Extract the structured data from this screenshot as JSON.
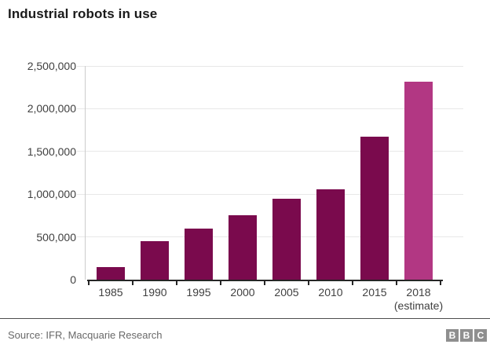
{
  "header": {
    "title": "Industrial robots in use"
  },
  "chart_data": {
    "type": "bar",
    "title": "Industrial robots in use",
    "categories": [
      "1985",
      "1990",
      "1995",
      "2000",
      "2005",
      "2010",
      "2015",
      "2018"
    ],
    "category_sublabels": [
      "",
      "",
      "",
      "",
      "",
      "",
      "",
      "(estimate)"
    ],
    "values": [
      150000,
      450000,
      600000,
      750000,
      950000,
      1060000,
      1670000,
      2320000
    ],
    "xlabel": "",
    "ylabel": "",
    "ylim": [
      0,
      2500000
    ],
    "yticks": [
      0,
      500000,
      1000000,
      1500000,
      2000000,
      2500000
    ],
    "ytick_labels": [
      "0",
      "500,000",
      "1,000,000",
      "1,500,000",
      "2,000,000",
      "2,500,000"
    ],
    "grid": "horizontal",
    "legend": "none",
    "colors": {
      "bar": "#7a0a4d",
      "highlight_bar": "#b23783",
      "gridline": "#e8e8e8",
      "axis": "#262626"
    },
    "highlight_index": 7
  },
  "footer": {
    "source": "Source: IFR, Macquarie Research",
    "logo_letters": [
      "B",
      "B",
      "C"
    ]
  }
}
